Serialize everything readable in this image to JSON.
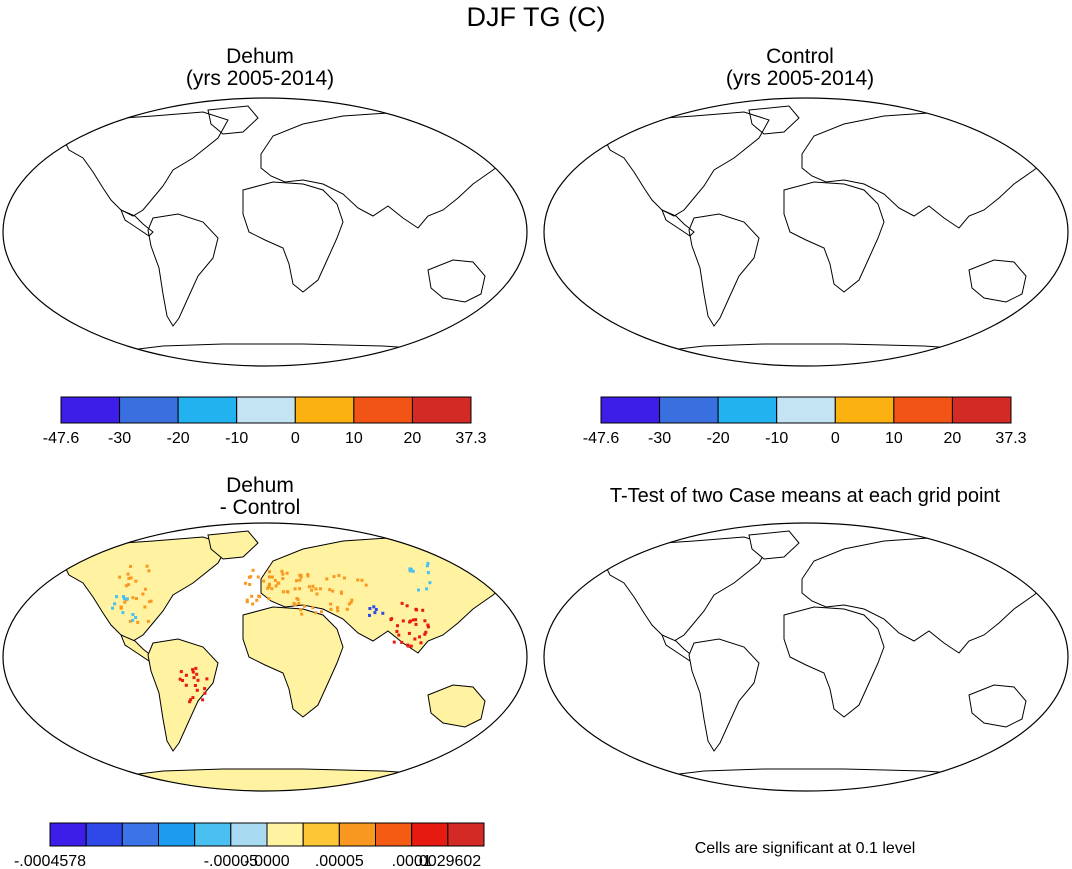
{
  "figure_title": "DJF TG (C)",
  "panels": [
    {
      "title_line1": "Dehum",
      "title_line2": "(yrs 2005-2014)"
    },
    {
      "title_line1": "Control",
      "title_line2": "(yrs 2005-2014)"
    },
    {
      "title_line1": "Dehum",
      "title_line2": "- Control"
    },
    {
      "title_line1": "T-Test of two Case means at each grid point",
      "title_line2": ""
    }
  ],
  "significance_note": "Cells are significant at 0.1 level",
  "colorbar_temp": {
    "colors": [
      "#3d1ee8",
      "#3a6fe0",
      "#21b2ef",
      "#c4e4f4",
      "#fbb210",
      "#f25416",
      "#d32a26"
    ],
    "labels": [
      "-47.6",
      "-30",
      "-20",
      "-10",
      "0",
      "10",
      "20",
      "37.3"
    ]
  },
  "colorbar_diff": {
    "colors": [
      "#3d1ee8",
      "#2f49e8",
      "#3a74e6",
      "#1d9bef",
      "#49bff2",
      "#a8dbf2",
      "#fff2a0",
      "#fdc637",
      "#f99820",
      "#f45c14",
      "#e61a10",
      "#d32a26"
    ],
    "labels": [
      {
        "text": "-.0004578",
        "edge": 0
      },
      {
        "text": "-.00005",
        "edge": 5
      },
      {
        "text": "-.0000",
        "edge": 6
      },
      {
        "text": ".00005",
        "edge": 8
      },
      {
        "text": ".0001",
        "edge": 10
      },
      {
        "text": ".0029602",
        "edge": 11
      }
    ]
  },
  "map_colors": {
    "ocean": "#ffffff",
    "temp_cold": "#3d1ee8",
    "temp_cool": "#3a6fe0",
    "temp_mid": "#21b2ef",
    "temp_light": "#c4e4f4",
    "temp_warm": "#fbb210",
    "temp_hot": "#f25416",
    "temp_red": "#d32a26",
    "diff_base": "#fff2a0",
    "diff_pos": "#f99820",
    "diff_pos2": "#e61a10",
    "diff_neg": "#49bff2",
    "diff_neg2": "#2f49e8"
  }
}
